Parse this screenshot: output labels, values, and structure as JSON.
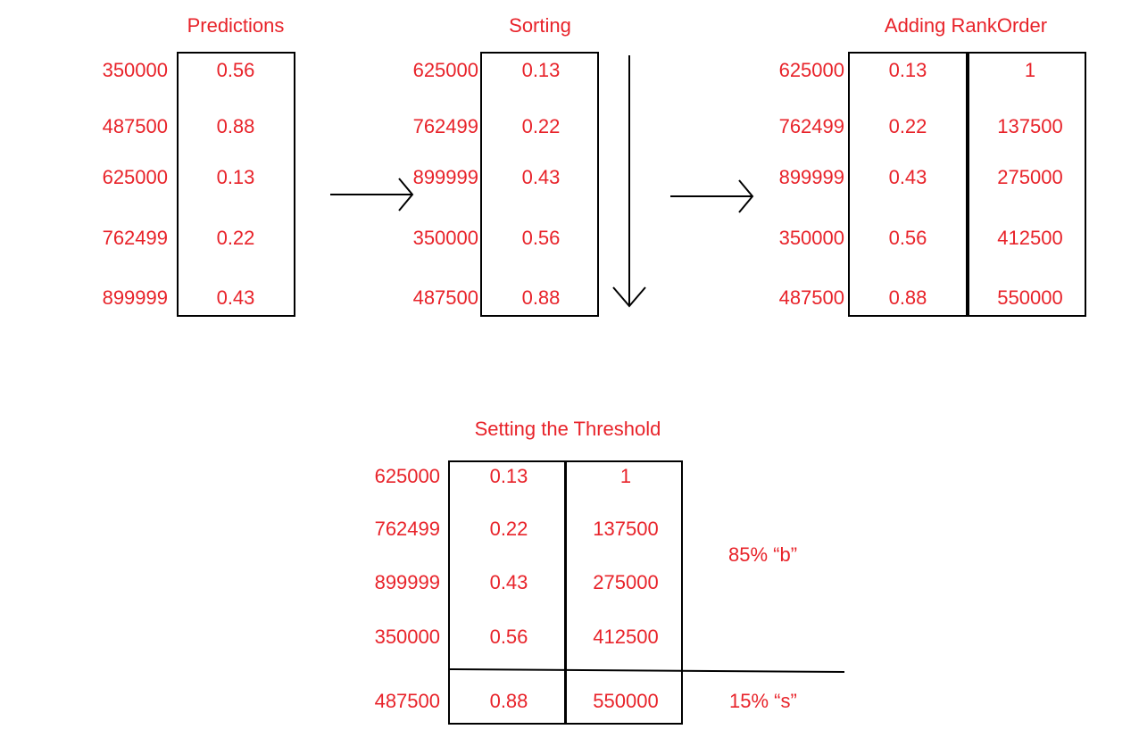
{
  "colors": {
    "text": "#e8232a",
    "lines": "#000000"
  },
  "panels": {
    "predictions": {
      "title": "Predictions",
      "ids": [
        "350000",
        "487500",
        "625000",
        "762499",
        "899999"
      ],
      "scores": [
        "0.56",
        "0.88",
        "0.13",
        "0.22",
        "0.43"
      ]
    },
    "sorting": {
      "title": "Sorting",
      "ids": [
        "625000",
        "762499",
        "899999",
        "350000",
        "487500"
      ],
      "scores": [
        "0.13",
        "0.22",
        "0.43",
        "0.56",
        "0.88"
      ]
    },
    "rank_order": {
      "title": "Adding RankOrder",
      "ids": [
        "625000",
        "762499",
        "899999",
        "350000",
        "487500"
      ],
      "scores": [
        "0.13",
        "0.22",
        "0.43",
        "0.56",
        "0.88"
      ],
      "ranks": [
        "1",
        "137500",
        "275000",
        "412500",
        "550000"
      ]
    },
    "threshold": {
      "title": "Setting the Threshold",
      "ids": [
        "625000",
        "762499",
        "899999",
        "350000",
        "487500"
      ],
      "scores": [
        "0.13",
        "0.22",
        "0.43",
        "0.56",
        "0.88"
      ],
      "ranks": [
        "1",
        "137500",
        "275000",
        "412500",
        "550000"
      ],
      "label_b": "85% “b”",
      "label_s": "15% “s”"
    }
  }
}
